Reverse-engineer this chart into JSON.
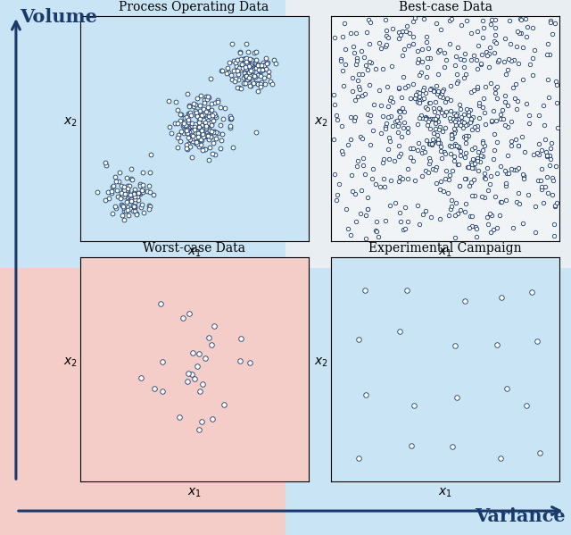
{
  "title_tl": "Process Operating Data",
  "title_tr": "Best-case Data",
  "title_bl": "Worst-case Data",
  "title_br": "Experimental Campaign",
  "bg_tl": "#c9e5f5",
  "bg_tr": "#e8eef2",
  "bg_bl": "#f5cdc8",
  "bg_br": "#c9e5f5",
  "plot_bg_tl": "#c9e5f5",
  "plot_bg_tr": "#f0f4f7",
  "plot_bg_bl": "#f5cdc8",
  "plot_bg_br": "#c9e5f5",
  "dot_edgecolor": "#1a3a6b",
  "arrow_color": "#1a3a6b",
  "volume_label": "Volume",
  "variance_label": "Variance",
  "font_size_title": 10,
  "font_size_axis": 10,
  "font_size_arrow_label": 15
}
